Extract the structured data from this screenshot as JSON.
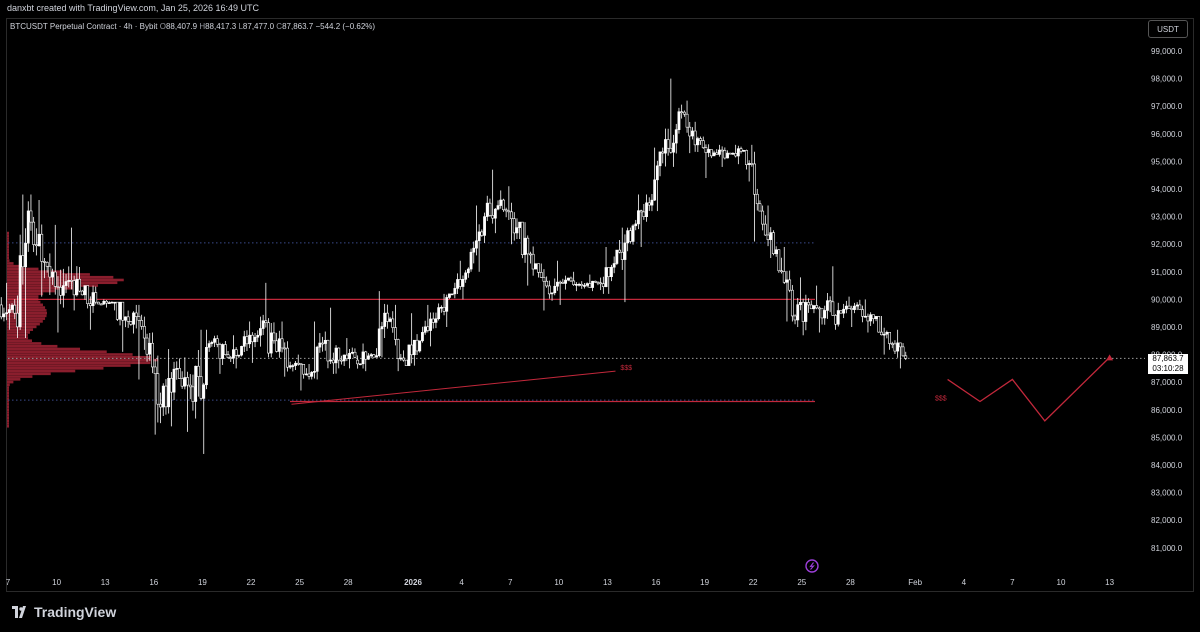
{
  "header": {
    "creator": "danxbt created with TradingView.com, Jan 25, 2026 16:49 UTC"
  },
  "legend": {
    "symbol": "BTCUSDT Perpetual Contract · 4h · Bybit",
    "open_label": "O",
    "open": "88,407.9",
    "high_label": "H",
    "high": "88,417.3",
    "low_label": "L",
    "low": "87,477.0",
    "close_label": "C",
    "close": "87,863.7",
    "change": "−544.2 (−0.62%)"
  },
  "currency": "USDT",
  "price_tag": {
    "price": "87,863.7",
    "countdown": "03:10:28"
  },
  "annotations": {
    "liquidity_left": "$$$",
    "liquidity_right": "$$$"
  },
  "brand": "TradingView",
  "colors": {
    "background": "#000000",
    "candle": "#ffffff",
    "red_line": "#c2283b",
    "blue_dotted": "#3b4a8a",
    "volume_profile": "#b8283c",
    "text": "#d1d4dc"
  },
  "chart_data": {
    "type": "candlestick",
    "title": "",
    "yaxis": {
      "labels": [
        "99,000.0",
        "98,000.0",
        "97,000.0",
        "96,000.0",
        "95,000.0",
        "94,000.0",
        "93,000.0",
        "92,000.0",
        "91,000.0",
        "90,000.0",
        "89,000.0",
        "88,000.0",
        "87,000.0",
        "86,000.0",
        "85,000.0",
        "84,000.0",
        "83,000.0",
        "82,000.0",
        "81,000.0"
      ],
      "min": 80500,
      "max": 99800
    },
    "xaxis": {
      "labels": [
        "7",
        "10",
        "13",
        "16",
        "19",
        "22",
        "25",
        "28",
        "2026",
        "4",
        "7",
        "10",
        "13",
        "16",
        "19",
        "22",
        "25",
        "28",
        "Feb",
        "4",
        "7",
        "10",
        "13"
      ],
      "label_days": [
        0,
        3,
        6,
        9,
        12,
        15,
        18,
        21,
        25,
        28,
        31,
        34,
        37,
        40,
        43,
        46,
        49,
        52,
        56,
        59,
        62,
        65,
        68
      ],
      "start": "Dec 7",
      "end": "Feb 15"
    },
    "ohlc_daily": [
      [
        0,
        89800,
        90600,
        88900,
        89500
      ],
      [
        1,
        89500,
        93800,
        88600,
        92800
      ],
      [
        2,
        92800,
        93600,
        90100,
        91200
      ],
      [
        3,
        91200,
        92700,
        88800,
        90500
      ],
      [
        4,
        90500,
        92600,
        89600,
        90300
      ],
      [
        5,
        90300,
        90500,
        88900,
        89900
      ],
      [
        6,
        89900,
        90000,
        89700,
        89900
      ],
      [
        7,
        89900,
        89900,
        88100,
        89200
      ],
      [
        8,
        89200,
        89800,
        87100,
        88600
      ],
      [
        9,
        88600,
        88800,
        85100,
        86100
      ],
      [
        10,
        86100,
        88200,
        85400,
        87500
      ],
      [
        11,
        87500,
        87900,
        85200,
        86300
      ],
      [
        12,
        86300,
        88900,
        84400,
        88400
      ],
      [
        13,
        88400,
        88700,
        87300,
        88000
      ],
      [
        14,
        88000,
        88700,
        87500,
        88300
      ],
      [
        15,
        88300,
        89200,
        87700,
        88700
      ],
      [
        16,
        88700,
        90600,
        87900,
        88500
      ],
      [
        17,
        88500,
        89200,
        87200,
        87600
      ],
      [
        18,
        87600,
        88000,
        86700,
        87300
      ],
      [
        19,
        87300,
        89200,
        87100,
        88400
      ],
      [
        20,
        88400,
        89700,
        87300,
        87800
      ],
      [
        21,
        87800,
        88600,
        87500,
        87900
      ],
      [
        22,
        87800,
        88400,
        87400,
        88000
      ],
      [
        23,
        88000,
        90300,
        87900,
        89200
      ],
      [
        24,
        89200,
        89800,
        87400,
        87800
      ],
      [
        25,
        87800,
        89500,
        87600,
        88500
      ],
      [
        26,
        88500,
        89800,
        88300,
        89300
      ],
      [
        27,
        89300,
        90200,
        89000,
        90200
      ],
      [
        28,
        90200,
        91400,
        90000,
        91100
      ],
      [
        29,
        91100,
        93400,
        91000,
        93000
      ],
      [
        30,
        93000,
        94700,
        92400,
        93600
      ],
      [
        31,
        93600,
        94100,
        92000,
        92600
      ],
      [
        32,
        92600,
        92800,
        90500,
        91100
      ],
      [
        33,
        91100,
        91300,
        89600,
        90200
      ],
      [
        34,
        90200,
        91400,
        89800,
        90700
      ],
      [
        35,
        90700,
        91000,
        90300,
        90500
      ],
      [
        36,
        90500,
        90900,
        90300,
        90600
      ],
      [
        37,
        90600,
        91900,
        90200,
        91300
      ],
      [
        38,
        91300,
        92600,
        89900,
        92100
      ],
      [
        39,
        92100,
        93800,
        91900,
        93500
      ],
      [
        40,
        93500,
        95500,
        93200,
        95300
      ],
      [
        41,
        95300,
        98000,
        94800,
        96800
      ],
      [
        42,
        96800,
        97200,
        95300,
        95600
      ],
      [
        43,
        95600,
        95900,
        94400,
        95200
      ],
      [
        44,
        95200,
        95600,
        94800,
        95300
      ],
      [
        45,
        95300,
        95600,
        94900,
        95400
      ],
      [
        46,
        95400,
        95600,
        92100,
        93200
      ],
      [
        47,
        93200,
        93400,
        91500,
        91800
      ],
      [
        48,
        91800,
        91900,
        89200,
        89400
      ],
      [
        49,
        89400,
        90800,
        88700,
        89800
      ],
      [
        50,
        89800,
        90500,
        88800,
        89600
      ],
      [
        51,
        89600,
        91200,
        88900,
        89500
      ],
      [
        52,
        89500,
        90100,
        89000,
        89800
      ],
      [
        53,
        89800,
        90000,
        88800,
        89300
      ],
      [
        54,
        89300,
        89400,
        88000,
        88400
      ],
      [
        55,
        88400,
        88900,
        87500,
        87864
      ]
    ],
    "horizontal_lines": [
      {
        "price": 90000,
        "style": "solid",
        "color": "red"
      },
      {
        "price": 86300,
        "style": "solid",
        "color": "red"
      },
      {
        "price": 92050,
        "style": "dotted",
        "color": "blue"
      },
      {
        "price": 86350,
        "style": "dotted",
        "color": "blue"
      },
      {
        "price": 87864,
        "style": "dotted",
        "color": "white"
      }
    ],
    "trendline": {
      "from": [
        17.5,
        86200
      ],
      "to": [
        37.5,
        87400
      ]
    },
    "projection_path": [
      [
        58,
        87100
      ],
      [
        60,
        86300
      ],
      [
        62,
        87100
      ],
      [
        64,
        85600
      ],
      [
        68,
        87900
      ]
    ],
    "current_price": 87863.7
  }
}
